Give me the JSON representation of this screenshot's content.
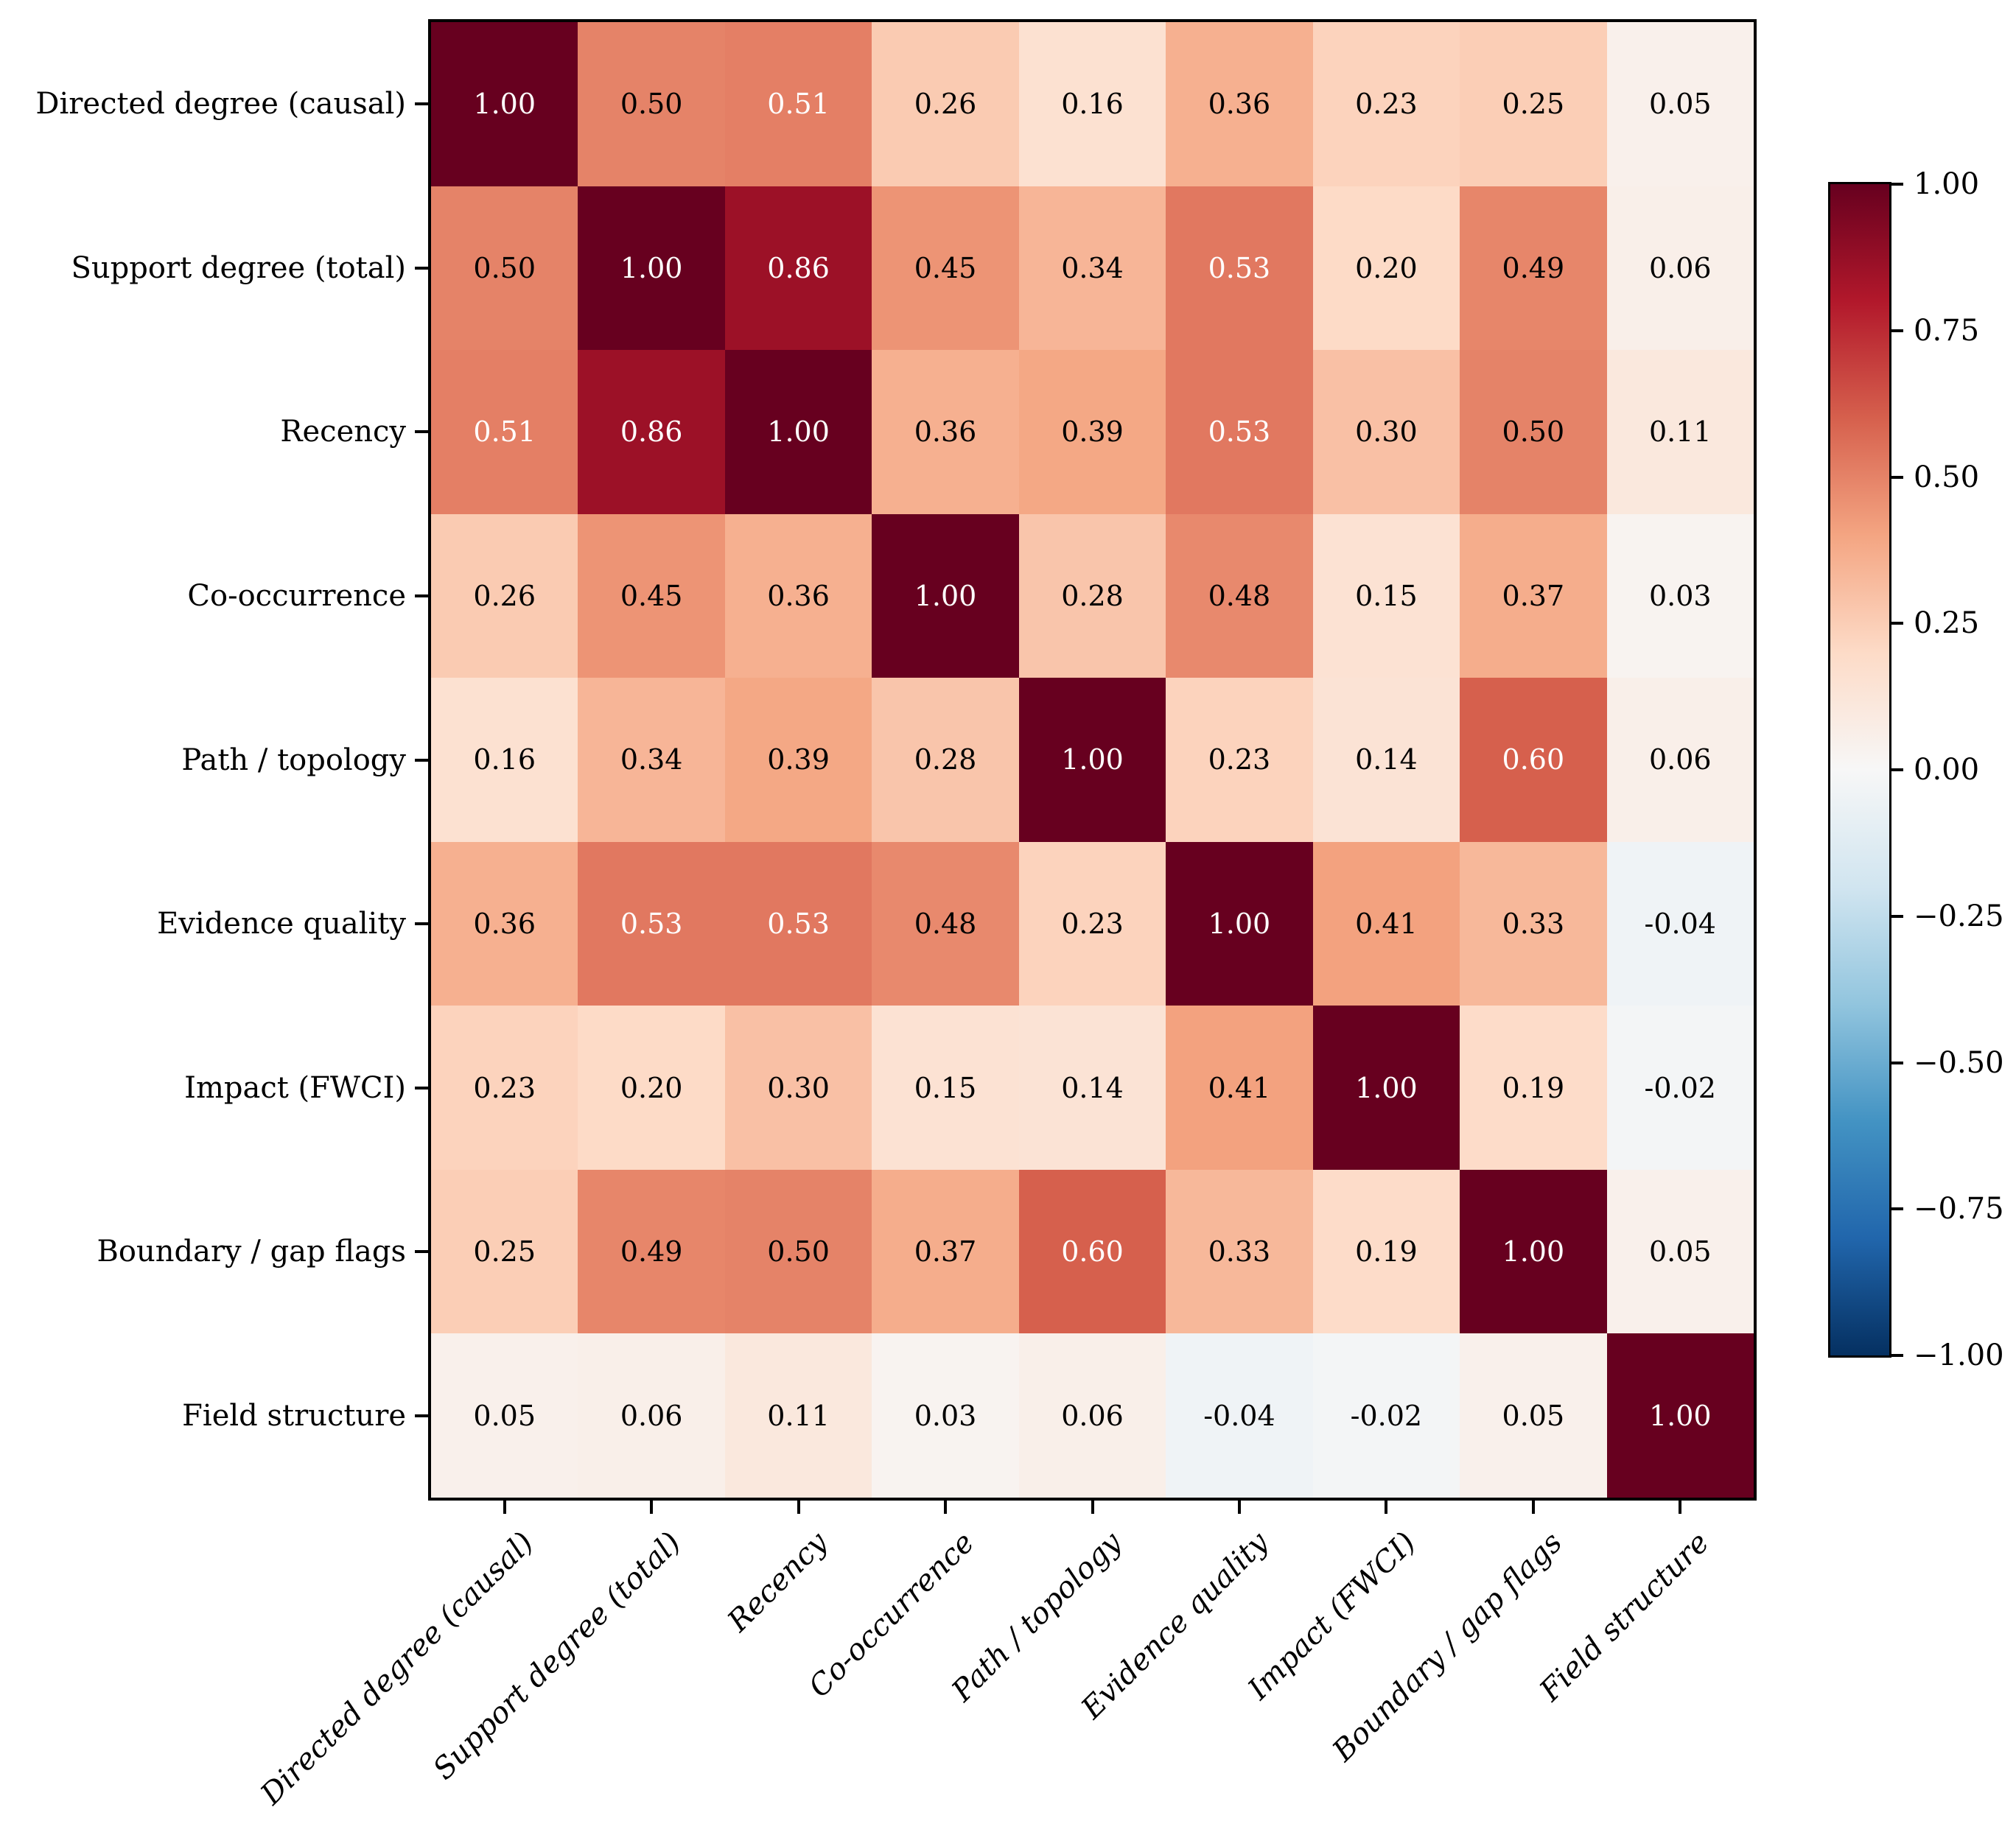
{
  "figure": {
    "background_color": "#ffffff",
    "spine_color": "#000000",
    "text_color": "#000000",
    "annotation_text_light_color": "#ffffff",
    "annotation_text_dark_color": "#000000"
  },
  "chart_data": {
    "type": "heatmap",
    "title": "",
    "xlabel": "",
    "ylabel": "",
    "grid": false,
    "legend_position": "colorbar-right",
    "categories": [
      "Directed degree (causal)",
      "Support degree (total)",
      "Recency",
      "Co-occurrence",
      "Path / topology",
      "Evidence quality",
      "Impact (FWCI)",
      "Boundary / gap flags",
      "Field structure"
    ],
    "matrix": [
      [
        1.0,
        0.5,
        0.51,
        0.26,
        0.16,
        0.36,
        0.23,
        0.25,
        0.05
      ],
      [
        0.5,
        1.0,
        0.86,
        0.45,
        0.34,
        0.53,
        0.2,
        0.49,
        0.06
      ],
      [
        0.51,
        0.86,
        1.0,
        0.36,
        0.39,
        0.53,
        0.3,
        0.5,
        0.11
      ],
      [
        0.26,
        0.45,
        0.36,
        1.0,
        0.28,
        0.48,
        0.15,
        0.37,
        0.03
      ],
      [
        0.16,
        0.34,
        0.39,
        0.28,
        1.0,
        0.23,
        0.14,
        0.6,
        0.06
      ],
      [
        0.36,
        0.53,
        0.53,
        0.48,
        0.23,
        1.0,
        0.41,
        0.33,
        -0.04
      ],
      [
        0.23,
        0.2,
        0.3,
        0.15,
        0.14,
        0.41,
        1.0,
        0.19,
        -0.02
      ],
      [
        0.25,
        0.49,
        0.5,
        0.37,
        0.6,
        0.33,
        0.19,
        1.0,
        0.05
      ],
      [
        0.05,
        0.06,
        0.11,
        0.03,
        0.06,
        -0.04,
        -0.02,
        0.05,
        1.0
      ]
    ],
    "cell_value_decimals": 2,
    "white_text_abs_threshold": 0.5,
    "vmin": -1,
    "vmax": 1,
    "colormap": {
      "name": "RdBu_r",
      "stops": [
        [
          -1.0,
          "#053061"
        ],
        [
          -0.8,
          "#2166ac"
        ],
        [
          -0.6,
          "#4393c3"
        ],
        [
          -0.4,
          "#92c5de"
        ],
        [
          -0.2,
          "#d1e5f0"
        ],
        [
          0.0,
          "#f7f7f7"
        ],
        [
          0.2,
          "#fddbc7"
        ],
        [
          0.4,
          "#f4a582"
        ],
        [
          0.6,
          "#d6604d"
        ],
        [
          0.8,
          "#b2182b"
        ],
        [
          1.0,
          "#67001f"
        ]
      ]
    },
    "colorbar_ticks": [
      {
        "value": 1.0,
        "label": "1.00"
      },
      {
        "value": 0.75,
        "label": "0.75"
      },
      {
        "value": 0.5,
        "label": "0.50"
      },
      {
        "value": 0.25,
        "label": "0.25"
      },
      {
        "value": 0.0,
        "label": "0.00"
      },
      {
        "value": -0.25,
        "label": "−0.25"
      },
      {
        "value": -0.5,
        "label": "−0.50"
      },
      {
        "value": -0.75,
        "label": "−0.75"
      },
      {
        "value": -1.0,
        "label": "−1.00"
      }
    ]
  }
}
